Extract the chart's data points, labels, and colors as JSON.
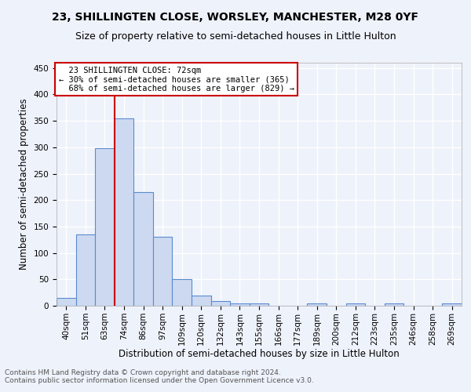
{
  "title1": "23, SHILLINGTEN CLOSE, WORSLEY, MANCHESTER, M28 0YF",
  "title2": "Size of property relative to semi-detached houses in Little Hulton",
  "xlabel": "Distribution of semi-detached houses by size in Little Hulton",
  "ylabel": "Number of semi-detached properties",
  "footnote1": "Contains HM Land Registry data © Crown copyright and database right 2024.",
  "footnote2": "Contains public sector information licensed under the Open Government Licence v3.0.",
  "categories": [
    "40sqm",
    "51sqm",
    "63sqm",
    "74sqm",
    "86sqm",
    "97sqm",
    "109sqm",
    "120sqm",
    "132sqm",
    "143sqm",
    "155sqm",
    "166sqm",
    "177sqm",
    "189sqm",
    "200sqm",
    "212sqm",
    "223sqm",
    "235sqm",
    "246sqm",
    "258sqm",
    "269sqm"
  ],
  "values": [
    15,
    135,
    298,
    355,
    215,
    130,
    50,
    20,
    9,
    5,
    5,
    0,
    0,
    4,
    0,
    4,
    0,
    4,
    0,
    0,
    4
  ],
  "bar_color": "#ccd9f0",
  "bar_edge_color": "#5b8bd0",
  "property_line_label": "23 SHILLINGTEN CLOSE: 72sqm",
  "annotation_line1": "← 30% of semi-detached houses are smaller (365)",
  "annotation_line2": "68% of semi-detached houses are larger (829) →",
  "annotation_box_color": "#ffffff",
  "annotation_box_edge_color": "#cc0000",
  "vline_color": "#cc0000",
  "ylim": [
    0,
    460
  ],
  "background_color": "#eef2fb",
  "grid_color": "#ffffff",
  "title1_fontsize": 10,
  "title2_fontsize": 9,
  "tick_fontsize": 7.5,
  "ylabel_fontsize": 8.5,
  "xlabel_fontsize": 8.5,
  "footnote_fontsize": 6.5,
  "annot_fontsize": 7.5
}
